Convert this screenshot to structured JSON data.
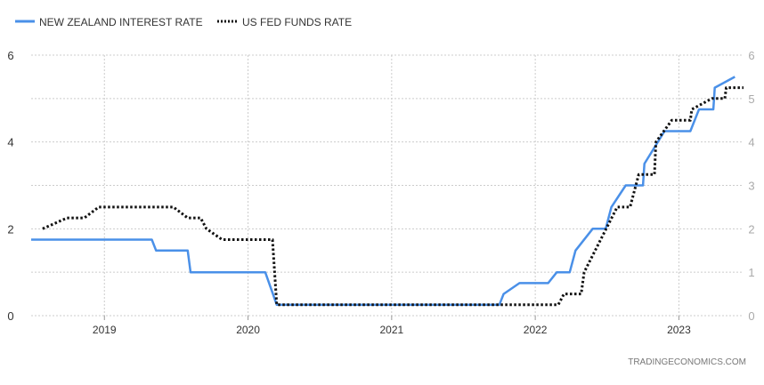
{
  "chart_data": {
    "type": "line",
    "title": "",
    "legend_position": "top-left",
    "xlim": [
      2018.49,
      2023.45
    ],
    "ylim": [
      0,
      6
    ],
    "x_ticks": [
      "2019",
      "2020",
      "2021",
      "2022",
      "2023"
    ],
    "x_tick_values": [
      2019,
      2020,
      2021,
      2022,
      2023
    ],
    "y_left_ticks": [
      "0",
      "2",
      "4",
      "6"
    ],
    "y_right_ticks": [
      "0",
      "1",
      "2",
      "3",
      "4",
      "5",
      "6"
    ],
    "grid": true,
    "series": [
      {
        "name": "NEW ZEALAND INTEREST RATE",
        "color": "#4a90e8",
        "style": "solid",
        "points": [
          [
            2018.49,
            1.75
          ],
          [
            2019.33,
            1.75
          ],
          [
            2019.36,
            1.5
          ],
          [
            2019.58,
            1.5
          ],
          [
            2019.6,
            1.0
          ],
          [
            2020.12,
            1.0
          ],
          [
            2020.2,
            0.25
          ],
          [
            2021.75,
            0.25
          ],
          [
            2021.78,
            0.5
          ],
          [
            2021.89,
            0.75
          ],
          [
            2022.09,
            0.75
          ],
          [
            2022.15,
            1.0
          ],
          [
            2022.24,
            1.0
          ],
          [
            2022.28,
            1.5
          ],
          [
            2022.4,
            2.0
          ],
          [
            2022.49,
            2.0
          ],
          [
            2022.53,
            2.5
          ],
          [
            2022.63,
            3.0
          ],
          [
            2022.75,
            3.0
          ],
          [
            2022.76,
            3.5
          ],
          [
            2022.9,
            4.25
          ],
          [
            2023.08,
            4.25
          ],
          [
            2023.14,
            4.75
          ],
          [
            2023.24,
            4.75
          ],
          [
            2023.25,
            5.25
          ],
          [
            2023.39,
            5.5
          ]
        ]
      },
      {
        "name": "US FED FUNDS RATE",
        "color": "#111111",
        "style": "dotted",
        "points": [
          [
            2018.57,
            2.0
          ],
          [
            2018.74,
            2.25
          ],
          [
            2018.86,
            2.25
          ],
          [
            2018.96,
            2.5
          ],
          [
            2019.48,
            2.5
          ],
          [
            2019.58,
            2.25
          ],
          [
            2019.67,
            2.25
          ],
          [
            2019.71,
            2.0
          ],
          [
            2019.82,
            1.75
          ],
          [
            2020.17,
            1.75
          ],
          [
            2020.2,
            0.25
          ],
          [
            2022.16,
            0.25
          ],
          [
            2022.2,
            0.5
          ],
          [
            2022.32,
            0.5
          ],
          [
            2022.34,
            1.0
          ],
          [
            2022.57,
            2.5
          ],
          [
            2022.66,
            2.5
          ],
          [
            2022.72,
            3.25
          ],
          [
            2022.83,
            3.25
          ],
          [
            2022.84,
            4.0
          ],
          [
            2022.95,
            4.5
          ],
          [
            2023.08,
            4.5
          ],
          [
            2023.09,
            4.75
          ],
          [
            2023.23,
            5.0
          ],
          [
            2023.32,
            5.0
          ],
          [
            2023.33,
            5.25
          ],
          [
            2023.45,
            5.25
          ]
        ]
      }
    ]
  },
  "footer": {
    "source": "TRADINGECONOMICS.COM"
  }
}
